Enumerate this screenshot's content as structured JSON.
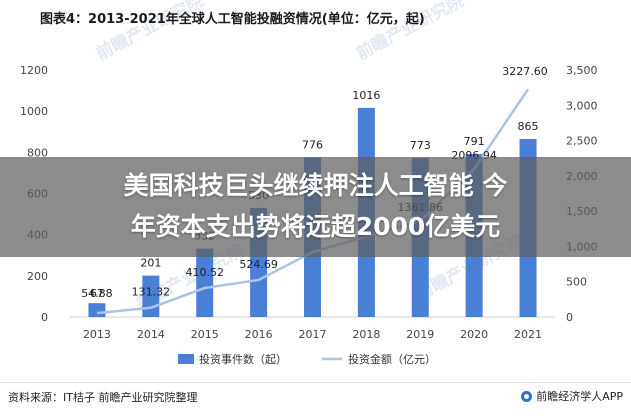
{
  "title": "图表4：2013-2021年全球人工智能投融资情况(单位：亿元，起)",
  "headline_line1": "美国科技巨头继续押注人工智能 今",
  "headline_line2": "年资本支出势将远超2000亿美元",
  "source": "资料来源：IT桔子 前瞻产业研究院整理",
  "brand": "前瞻经济学人APP",
  "watermark": "前瞻产业研究院",
  "colors": {
    "bar": "#4a7fd6",
    "line": "#a9c3ea",
    "axis_text": "#444444",
    "grid": "#e8e8e8"
  },
  "chart_data": {
    "type": "bar",
    "categories": [
      "2013",
      "2014",
      "2015",
      "2016",
      "2017",
      "2018",
      "2019",
      "2020",
      "2021"
    ],
    "series": [
      {
        "name": "投资事件数（起）",
        "type": "bar",
        "axis": "left",
        "values": [
          67,
          201,
          332,
          530,
          776,
          1016,
          773,
          791,
          865
        ],
        "labels": [
          "67",
          "201",
          "332",
          "530",
          "776",
          "1016",
          "773",
          "791",
          "865"
        ]
      },
      {
        "name": "投资金额（亿元）",
        "type": "line",
        "axis": "right",
        "values": [
          54.88,
          131.32,
          410.52,
          524.69,
          920,
          1140,
          1361.86,
          2096.94,
          3227.6
        ],
        "labels": [
          "54.88",
          "131.32",
          "410.52",
          "524.69",
          "",
          "",
          "1361.86",
          "2096.94",
          "3227.60"
        ]
      }
    ],
    "left_axis": {
      "min": 0,
      "max": 1200,
      "ticks": [
        "0",
        "200",
        "400",
        "600",
        "800",
        "1000",
        "1200"
      ]
    },
    "right_axis": {
      "min": 0,
      "max": 3500,
      "ticks": [
        "0",
        "500",
        "1,000",
        "1,500",
        "2,000",
        "2,500",
        "3,000",
        "3,500"
      ]
    },
    "grid": false,
    "legend": "bottom"
  }
}
